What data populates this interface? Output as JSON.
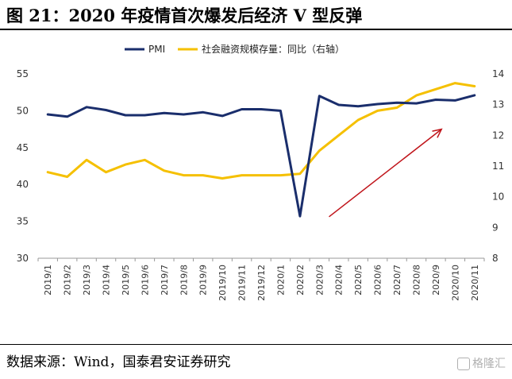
{
  "header": {
    "title": "图 21：2020 年疫情首次爆发后经济 V 型反弹"
  },
  "footer": {
    "source": "数据来源：Wind，国泰君安证券研究",
    "watermark": "格隆汇"
  },
  "chart_data": {
    "type": "line",
    "categories": [
      "2019/1",
      "2019/2",
      "2019/3",
      "2019/4",
      "2019/5",
      "2019/6",
      "2019/7",
      "2019/8",
      "2019/9",
      "2019/10",
      "2019/11",
      "2019/12",
      "2020/1",
      "2020/2",
      "2020/3",
      "2020/4",
      "2020/5",
      "2020/6",
      "2020/7",
      "2020/8",
      "2020/9",
      "2020/10",
      "2020/11"
    ],
    "series": [
      {
        "name": "PMI",
        "axis": "left",
        "color": "#1a2e6c",
        "values": [
          49.5,
          49.2,
          50.5,
          50.1,
          49.4,
          49.4,
          49.7,
          49.5,
          49.8,
          49.3,
          50.2,
          50.2,
          50.0,
          35.7,
          52.0,
          50.8,
          50.6,
          50.9,
          51.1,
          51.0,
          51.5,
          51.4,
          52.1
        ]
      },
      {
        "name": "社会融资规模存量：同比（右轴）",
        "axis": "right",
        "color": "#f5c000",
        "values": [
          10.8,
          10.65,
          11.2,
          10.8,
          11.05,
          11.2,
          10.85,
          10.7,
          10.7,
          10.6,
          10.7,
          10.7,
          10.7,
          10.75,
          11.5,
          12.0,
          12.5,
          12.8,
          12.9,
          13.3,
          13.5,
          13.7,
          13.6
        ]
      }
    ],
    "legend": {
      "pmi_label": "PMI",
      "tsf_label": "社会融资规模存量：同比（右轴）",
      "placement": "top-center"
    },
    "y_left": {
      "min": 30,
      "max": 55,
      "ticks": [
        30,
        35,
        40,
        45,
        50,
        55
      ]
    },
    "y_right": {
      "min": 8,
      "max": 14,
      "ticks": [
        8,
        9,
        10,
        11,
        12,
        13,
        14
      ]
    },
    "annotation": {
      "type": "arrow",
      "color": "#c0151b",
      "from_index": 14.5,
      "from_right_value": 9.35,
      "to_index": 20.3,
      "to_right_value": 12.2
    },
    "grid": false
  }
}
